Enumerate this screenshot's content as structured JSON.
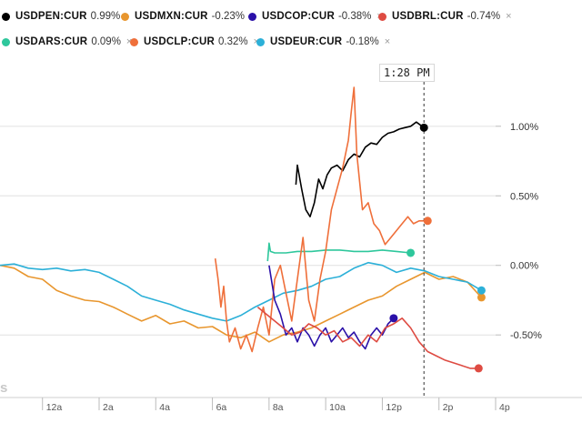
{
  "legend": [
    {
      "ticker": "USDPEN:CUR",
      "change": "0.99%",
      "color": "#000000",
      "closable": false
    },
    {
      "ticker": "USDMXN:CUR",
      "change": "-0.23%",
      "color": "#e8962e",
      "closable": true
    },
    {
      "ticker": "USDCOP:CUR",
      "change": "-0.38%",
      "color": "#2a10a8",
      "closable": true
    },
    {
      "ticker": "USDBRL:CUR",
      "change": "-0.74%",
      "color": "#de4b42",
      "closable": true
    },
    {
      "ticker": "USDARS:CUR",
      "change": "0.09%",
      "color": "#2ec79c",
      "closable": true
    },
    {
      "ticker": "USDCLP:CUR",
      "change": "0.32%",
      "color": "#ef6f3a",
      "closable": true
    },
    {
      "ticker": "USDEUR:CUR",
      "change": "-0.18%",
      "color": "#2cb0d8",
      "closable": true
    }
  ],
  "close_icon": "×",
  "tooltip_time": "1:28 PM",
  "watermark": "s",
  "chart_data": {
    "type": "line",
    "x_unit": "hours",
    "x_range": [
      22.5,
      40.0
    ],
    "y_range": [
      -0.95,
      1.45
    ],
    "y_ticks": [
      {
        "value": 1.0,
        "label": "1.00%"
      },
      {
        "value": 0.5,
        "label": "0.50%"
      },
      {
        "value": 0.0,
        "label": "0.00%"
      },
      {
        "value": -0.5,
        "label": "-0.50%"
      }
    ],
    "x_ticks": [
      {
        "value": 24,
        "label": "12a"
      },
      {
        "value": 26,
        "label": "2a"
      },
      {
        "value": 28,
        "label": "4a"
      },
      {
        "value": 30,
        "label": "6a"
      },
      {
        "value": 32,
        "label": "8a"
      },
      {
        "value": 34,
        "label": "10a"
      },
      {
        "value": 36,
        "label": "12p"
      },
      {
        "value": 38,
        "label": "2p"
      },
      {
        "value": 40,
        "label": "4p"
      }
    ],
    "cursor_x": 37.47,
    "series": [
      {
        "name": "USDPEN:CUR",
        "color": "#000000",
        "x": [
          32.95,
          33.0,
          33.15,
          33.3,
          33.45,
          33.6,
          33.75,
          33.9,
          34.05,
          34.2,
          34.4,
          34.6,
          34.8,
          35.0,
          35.2,
          35.4,
          35.6,
          35.8,
          36.0,
          36.2,
          36.4,
          36.6,
          36.8,
          37.0,
          37.2,
          37.47
        ],
        "y": [
          0.58,
          0.72,
          0.55,
          0.4,
          0.35,
          0.45,
          0.62,
          0.55,
          0.65,
          0.7,
          0.72,
          0.68,
          0.76,
          0.8,
          0.78,
          0.85,
          0.88,
          0.87,
          0.92,
          0.95,
          0.96,
          0.98,
          0.99,
          1.0,
          1.03,
          0.99
        ]
      },
      {
        "name": "USDMXN:CUR",
        "color": "#e8962e",
        "x": [
          22.5,
          23.0,
          23.5,
          24.0,
          24.5,
          25.0,
          25.5,
          26.0,
          26.5,
          27.0,
          27.5,
          28.0,
          28.5,
          29.0,
          29.5,
          30.0,
          30.5,
          31.0,
          31.5,
          32.0,
          32.5,
          33.0,
          33.5,
          34.0,
          34.5,
          35.0,
          35.5,
          36.0,
          36.5,
          37.0,
          37.5,
          38.0,
          38.5,
          39.0,
          39.5
        ],
        "y": [
          0.0,
          -0.02,
          -0.08,
          -0.1,
          -0.18,
          -0.22,
          -0.25,
          -0.26,
          -0.3,
          -0.35,
          -0.4,
          -0.36,
          -0.42,
          -0.4,
          -0.45,
          -0.44,
          -0.5,
          -0.52,
          -0.48,
          -0.55,
          -0.5,
          -0.48,
          -0.45,
          -0.4,
          -0.35,
          -0.3,
          -0.25,
          -0.22,
          -0.15,
          -0.1,
          -0.05,
          -0.1,
          -0.08,
          -0.12,
          -0.23
        ]
      },
      {
        "name": "USDEUR:CUR",
        "color": "#2cb0d8",
        "x": [
          22.5,
          23.0,
          23.5,
          24.0,
          24.5,
          25.0,
          25.5,
          26.0,
          26.5,
          27.0,
          27.5,
          28.0,
          28.5,
          29.0,
          29.5,
          30.0,
          30.5,
          31.0,
          31.5,
          32.0,
          32.5,
          33.0,
          33.5,
          34.0,
          34.5,
          35.0,
          35.5,
          36.0,
          36.5,
          37.0,
          37.5,
          38.0,
          38.5,
          39.0,
          39.5
        ],
        "y": [
          0.0,
          0.01,
          -0.02,
          -0.03,
          -0.02,
          -0.04,
          -0.03,
          -0.05,
          -0.1,
          -0.15,
          -0.22,
          -0.25,
          -0.28,
          -0.32,
          -0.35,
          -0.38,
          -0.4,
          -0.36,
          -0.3,
          -0.25,
          -0.2,
          -0.18,
          -0.15,
          -0.1,
          -0.08,
          -0.02,
          0.02,
          0.0,
          -0.05,
          -0.02,
          -0.04,
          -0.08,
          -0.1,
          -0.12,
          -0.18
        ]
      },
      {
        "name": "USDARS:CUR",
        "color": "#2ec79c",
        "x": [
          31.95,
          32.0,
          32.05,
          32.2,
          32.6,
          33.0,
          33.5,
          34.0,
          34.5,
          35.0,
          35.5,
          36.0,
          36.5,
          37.0
        ],
        "y": [
          0.03,
          0.16,
          0.1,
          0.09,
          0.09,
          0.1,
          0.1,
          0.11,
          0.11,
          0.1,
          0.1,
          0.11,
          0.1,
          0.09
        ]
      },
      {
        "name": "USDCLP:CUR",
        "color": "#ef6f3a",
        "x": [
          30.1,
          30.2,
          30.3,
          30.4,
          30.5,
          30.6,
          30.8,
          31.0,
          31.2,
          31.4,
          31.6,
          31.8,
          32.0,
          32.2,
          32.4,
          32.6,
          32.8,
          33.0,
          33.2,
          33.4,
          33.6,
          33.8,
          34.0,
          34.2,
          34.4,
          34.6,
          34.8,
          34.9,
          35.0,
          35.1,
          35.2,
          35.3,
          35.5,
          35.7,
          35.9,
          36.1,
          36.3,
          36.5,
          36.7,
          36.9,
          37.1,
          37.3,
          37.6
        ],
        "y": [
          0.05,
          -0.1,
          -0.3,
          -0.15,
          -0.4,
          -0.55,
          -0.45,
          -0.6,
          -0.5,
          -0.62,
          -0.45,
          -0.3,
          -0.5,
          -0.1,
          0.0,
          -0.2,
          -0.4,
          -0.1,
          0.2,
          -0.25,
          -0.4,
          -0.1,
          0.1,
          0.4,
          0.55,
          0.7,
          0.9,
          1.1,
          1.28,
          0.8,
          0.6,
          0.4,
          0.45,
          0.3,
          0.25,
          0.15,
          0.2,
          0.25,
          0.3,
          0.35,
          0.3,
          0.32,
          0.32
        ]
      },
      {
        "name": "USDCOP:CUR",
        "color": "#2a10a8",
        "x": [
          32.0,
          32.2,
          32.4,
          32.6,
          32.8,
          33.0,
          33.2,
          33.4,
          33.6,
          33.8,
          34.0,
          34.2,
          34.4,
          34.6,
          34.8,
          35.0,
          35.2,
          35.4,
          35.6,
          35.8,
          36.0,
          36.2,
          36.4
        ],
        "y": [
          0.0,
          -0.25,
          -0.35,
          -0.5,
          -0.45,
          -0.55,
          -0.45,
          -0.5,
          -0.58,
          -0.5,
          -0.45,
          -0.55,
          -0.5,
          -0.45,
          -0.52,
          -0.48,
          -0.55,
          -0.6,
          -0.5,
          -0.45,
          -0.5,
          -0.42,
          -0.38
        ]
      },
      {
        "name": "USDBRL:CUR",
        "color": "#de4b42",
        "x": [
          31.6,
          31.9,
          32.2,
          32.5,
          32.8,
          33.1,
          33.4,
          33.7,
          34.0,
          34.3,
          34.6,
          34.9,
          35.2,
          35.5,
          35.8,
          36.1,
          36.4,
          36.7,
          37.0,
          37.3,
          37.6,
          37.9,
          38.2,
          38.5,
          38.8,
          39.1,
          39.4
        ],
        "y": [
          -0.3,
          -0.35,
          -0.4,
          -0.45,
          -0.5,
          -0.48,
          -0.42,
          -0.45,
          -0.5,
          -0.47,
          -0.55,
          -0.52,
          -0.58,
          -0.5,
          -0.55,
          -0.45,
          -0.42,
          -0.38,
          -0.45,
          -0.55,
          -0.62,
          -0.65,
          -0.68,
          -0.7,
          -0.72,
          -0.74,
          -0.74
        ]
      }
    ]
  }
}
